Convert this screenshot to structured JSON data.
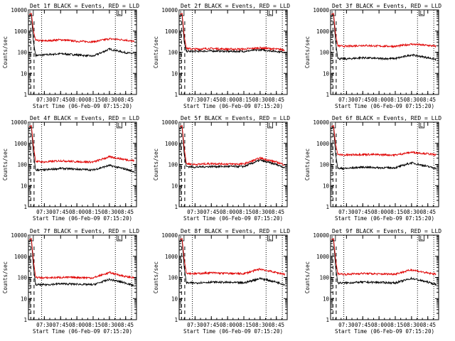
{
  "title_template": "Det {n}f BLACK = Events, RED = LLD",
  "legend": {
    "black": "Events",
    "red": "LLD"
  },
  "colors": {
    "events": "#000000",
    "lld": "#e00000",
    "axis": "#000000",
    "background": "#ffffff"
  },
  "chart_data": [
    {
      "type": "line",
      "title": "Det 1f BLACK = Events, RED = LLD",
      "xlabel": "Start Time (06-Feb-09 07:15:20)",
      "ylabel": "Counts/sec",
      "yscale": "log",
      "ylim": [
        1,
        10000
      ],
      "x_ticks": [
        "07:30",
        "07:45",
        "08:00",
        "08:15",
        "08:30",
        "08:45"
      ],
      "y_ticks": [
        "1",
        "10",
        "100",
        "1000",
        "10000"
      ],
      "marker_label": "L",
      "series": [
        {
          "name": "Events",
          "color": "#000000",
          "x": [
            "07:16",
            "07:18",
            "07:20",
            "07:22",
            "07:30",
            "07:45",
            "08:00",
            "08:15",
            "08:30",
            "08:45",
            "08:53"
          ],
          "y": [
            5000,
            6000,
            300,
            70,
            75,
            85,
            75,
            65,
            140,
            95,
            85
          ]
        },
        {
          "name": "LLD",
          "color": "#e00000",
          "x": [
            "07:16",
            "07:18",
            "07:20",
            "07:22",
            "07:30",
            "07:45",
            "08:00",
            "08:15",
            "08:30",
            "08:45",
            "08:53"
          ],
          "y": [
            6000,
            7000,
            1000,
            360,
            340,
            390,
            330,
            310,
            430,
            380,
            310
          ]
        }
      ]
    },
    {
      "type": "line",
      "title": "Det 2f BLACK = Events, RED = LLD",
      "xlabel": "Start Time (06-Feb-09 07:15:20)",
      "ylabel": "Counts/sec",
      "yscale": "log",
      "ylim": [
        1,
        10000
      ],
      "x_ticks": [
        "07:30",
        "07:45",
        "08:00",
        "08:15",
        "08:30",
        "08:45"
      ],
      "y_ticks": [
        "1",
        "10",
        "100",
        "1000",
        "10000"
      ],
      "marker_label": "L",
      "series": [
        {
          "name": "Events",
          "color": "#000000",
          "x": [
            "07:16",
            "07:18",
            "07:20",
            "07:22",
            "07:30",
            "07:45",
            "08:00",
            "08:15",
            "08:30",
            "08:45",
            "08:53"
          ],
          "y": [
            5000,
            6000,
            300,
            110,
            110,
            115,
            110,
            110,
            130,
            110,
            100
          ]
        },
        {
          "name": "LLD",
          "color": "#e00000",
          "x": [
            "07:16",
            "07:18",
            "07:20",
            "07:22",
            "07:30",
            "07:45",
            "08:00",
            "08:15",
            "08:30",
            "08:45",
            "08:53"
          ],
          "y": [
            6000,
            7000,
            600,
            150,
            140,
            150,
            140,
            140,
            160,
            140,
            130
          ]
        }
      ]
    },
    {
      "type": "line",
      "title": "Det 3f BLACK = Events, RED = LLD",
      "xlabel": "Start Time (06-Feb-09 07:15:20)",
      "ylabel": "Counts/sec",
      "yscale": "log",
      "ylim": [
        1,
        10000
      ],
      "x_ticks": [
        "07:30",
        "07:45",
        "08:00",
        "08:15",
        "08:30",
        "08:45"
      ],
      "y_ticks": [
        "1",
        "10",
        "100",
        "1000",
        "10000"
      ],
      "marker_label": "L",
      "series": [
        {
          "name": "Events",
          "color": "#000000",
          "x": [
            "07:16",
            "07:18",
            "07:20",
            "07:22",
            "07:30",
            "07:45",
            "08:00",
            "08:15",
            "08:30",
            "08:45",
            "08:53"
          ],
          "y": [
            5000,
            6000,
            300,
            50,
            48,
            55,
            50,
            50,
            75,
            55,
            45
          ]
        },
        {
          "name": "LLD",
          "color": "#e00000",
          "x": [
            "07:16",
            "07:18",
            "07:20",
            "07:22",
            "07:30",
            "07:45",
            "08:00",
            "08:15",
            "08:30",
            "08:45",
            "08:53"
          ],
          "y": [
            6000,
            7000,
            700,
            200,
            190,
            210,
            195,
            190,
            240,
            210,
            190
          ]
        }
      ]
    },
    {
      "type": "line",
      "title": "Det 4f BLACK = Events, RED = LLD",
      "xlabel": "Start Time (06-Feb-09 07:15:20)",
      "ylabel": "Counts/sec",
      "yscale": "log",
      "ylim": [
        1,
        10000
      ],
      "x_ticks": [
        "07:30",
        "07:45",
        "08:00",
        "08:15",
        "08:30",
        "08:45"
      ],
      "y_ticks": [
        "1",
        "10",
        "100",
        "1000",
        "10000"
      ],
      "marker_label": "L",
      "series": [
        {
          "name": "Events",
          "color": "#000000",
          "x": [
            "07:16",
            "07:18",
            "07:20",
            "07:22",
            "07:30",
            "07:45",
            "08:00",
            "08:15",
            "08:30",
            "08:45",
            "08:53"
          ],
          "y": [
            5000,
            6000,
            300,
            55,
            55,
            65,
            60,
            55,
            90,
            60,
            45
          ]
        },
        {
          "name": "LLD",
          "color": "#e00000",
          "x": [
            "07:16",
            "07:18",
            "07:20",
            "07:22",
            "07:30",
            "07:45",
            "08:00",
            "08:15",
            "08:30",
            "08:45",
            "08:53"
          ],
          "y": [
            6000,
            7000,
            700,
            140,
            130,
            150,
            135,
            130,
            230,
            170,
            150
          ]
        }
      ]
    },
    {
      "type": "line",
      "title": "Det 5f BLACK = Events, RED = LLD",
      "xlabel": "Start Time (06-Feb-09 07:15:20)",
      "ylabel": "Counts/sec",
      "yscale": "log",
      "ylim": [
        1,
        10000
      ],
      "x_ticks": [
        "07:30",
        "07:45",
        "08:00",
        "08:15",
        "08:30",
        "08:45"
      ],
      "y_ticks": [
        "1",
        "10",
        "100",
        "1000",
        "10000"
      ],
      "marker_label": "L",
      "series": [
        {
          "name": "Events",
          "color": "#000000",
          "x": [
            "07:16",
            "07:18",
            "07:20",
            "07:22",
            "07:30",
            "07:45",
            "08:00",
            "08:15",
            "08:30",
            "08:45",
            "08:53"
          ],
          "y": [
            5000,
            6000,
            300,
            80,
            75,
            80,
            80,
            80,
            160,
            100,
            70
          ]
        },
        {
          "name": "LLD",
          "color": "#e00000",
          "x": [
            "07:16",
            "07:18",
            "07:20",
            "07:22",
            "07:30",
            "07:45",
            "08:00",
            "08:15",
            "08:30",
            "08:45",
            "08:53"
          ],
          "y": [
            6000,
            7000,
            600,
            110,
            100,
            110,
            105,
            105,
            200,
            130,
            95
          ]
        }
      ]
    },
    {
      "type": "line",
      "title": "Det 6f BLACK = Events, RED = LLD",
      "xlabel": "Start Time (06-Feb-09 07:15:20)",
      "ylabel": "Counts/sec",
      "yscale": "log",
      "ylim": [
        1,
        10000
      ],
      "x_ticks": [
        "07:30",
        "07:45",
        "08:00",
        "08:15",
        "08:30",
        "08:45"
      ],
      "y_ticks": [
        "1",
        "10",
        "100",
        "1000",
        "10000"
      ],
      "marker_label": "L",
      "series": [
        {
          "name": "Events",
          "color": "#000000",
          "x": [
            "07:16",
            "07:18",
            "07:20",
            "07:22",
            "07:30",
            "07:45",
            "08:00",
            "08:15",
            "08:30",
            "08:45",
            "08:53"
          ],
          "y": [
            5000,
            6000,
            300,
            65,
            65,
            75,
            70,
            70,
            120,
            80,
            65
          ]
        },
        {
          "name": "LLD",
          "color": "#e00000",
          "x": [
            "07:16",
            "07:18",
            "07:20",
            "07:22",
            "07:30",
            "07:45",
            "08:00",
            "08:15",
            "08:30",
            "08:45",
            "08:53"
          ],
          "y": [
            6000,
            7000,
            900,
            290,
            280,
            300,
            290,
            280,
            380,
            320,
            280
          ]
        }
      ]
    },
    {
      "type": "line",
      "title": "Det 7f BLACK = Events, RED = LLD",
      "xlabel": "Start Time (06-Feb-09 07:15:20)",
      "ylabel": "Counts/sec",
      "yscale": "log",
      "ylim": [
        1,
        10000
      ],
      "x_ticks": [
        "07:30",
        "07:45",
        "08:00",
        "08:15",
        "08:30",
        "08:45"
      ],
      "y_ticks": [
        "1",
        "10",
        "100",
        "1000",
        "10000"
      ],
      "marker_label": "L",
      "series": [
        {
          "name": "Events",
          "color": "#000000",
          "x": [
            "07:16",
            "07:18",
            "07:20",
            "07:22",
            "07:30",
            "07:45",
            "08:00",
            "08:15",
            "08:30",
            "08:45",
            "08:53"
          ],
          "y": [
            5000,
            6000,
            300,
            45,
            45,
            50,
            48,
            45,
            80,
            55,
            40
          ]
        },
        {
          "name": "LLD",
          "color": "#e00000",
          "x": [
            "07:16",
            "07:18",
            "07:20",
            "07:22",
            "07:30",
            "07:45",
            "08:00",
            "08:15",
            "08:30",
            "08:45",
            "08:53"
          ],
          "y": [
            6000,
            7000,
            600,
            100,
            95,
            100,
            100,
            95,
            170,
            110,
            95
          ]
        }
      ]
    },
    {
      "type": "line",
      "title": "Det 8f BLACK = Events, RED = LLD",
      "xlabel": "Start Time (06-Feb-09 07:15:20)",
      "ylabel": "Counts/sec",
      "yscale": "log",
      "ylim": [
        1,
        10000
      ],
      "x_ticks": [
        "07:30",
        "07:45",
        "08:00",
        "08:15",
        "08:30",
        "08:45"
      ],
      "y_ticks": [
        "1",
        "10",
        "100",
        "1000",
        "10000"
      ],
      "marker_label": "L",
      "series": [
        {
          "name": "Events",
          "color": "#000000",
          "x": [
            "07:16",
            "07:18",
            "07:20",
            "07:22",
            "07:30",
            "07:45",
            "08:00",
            "08:15",
            "08:30",
            "08:45",
            "08:53"
          ],
          "y": [
            5000,
            6000,
            300,
            55,
            55,
            60,
            58,
            55,
            90,
            60,
            45
          ]
        },
        {
          "name": "LLD",
          "color": "#e00000",
          "x": [
            "07:16",
            "07:18",
            "07:20",
            "07:22",
            "07:30",
            "07:45",
            "08:00",
            "08:15",
            "08:30",
            "08:45",
            "08:53"
          ],
          "y": [
            6000,
            7000,
            700,
            160,
            150,
            165,
            155,
            150,
            250,
            170,
            140
          ]
        }
      ]
    },
    {
      "type": "line",
      "title": "Det 9f BLACK = Events, RED = LLD",
      "xlabel": "Start Time (06-Feb-09 07:15:20)",
      "ylabel": "Counts/sec",
      "yscale": "log",
      "ylim": [
        1,
        10000
      ],
      "x_ticks": [
        "07:30",
        "07:45",
        "08:00",
        "08:15",
        "08:30",
        "08:45"
      ],
      "y_ticks": [
        "1",
        "10",
        "100",
        "1000",
        "10000"
      ],
      "marker_label": "L",
      "series": [
        {
          "name": "Events",
          "color": "#000000",
          "x": [
            "07:16",
            "07:18",
            "07:20",
            "07:22",
            "07:30",
            "07:45",
            "08:00",
            "08:15",
            "08:30",
            "08:45",
            "08:53"
          ],
          "y": [
            5000,
            6000,
            300,
            55,
            55,
            60,
            58,
            55,
            90,
            60,
            45
          ]
        },
        {
          "name": "LLD",
          "color": "#e00000",
          "x": [
            "07:16",
            "07:18",
            "07:20",
            "07:22",
            "07:30",
            "07:45",
            "08:00",
            "08:15",
            "08:30",
            "08:45",
            "08:53"
          ],
          "y": [
            6000,
            7000,
            700,
            150,
            140,
            155,
            145,
            145,
            230,
            160,
            140
          ]
        }
      ]
    }
  ]
}
